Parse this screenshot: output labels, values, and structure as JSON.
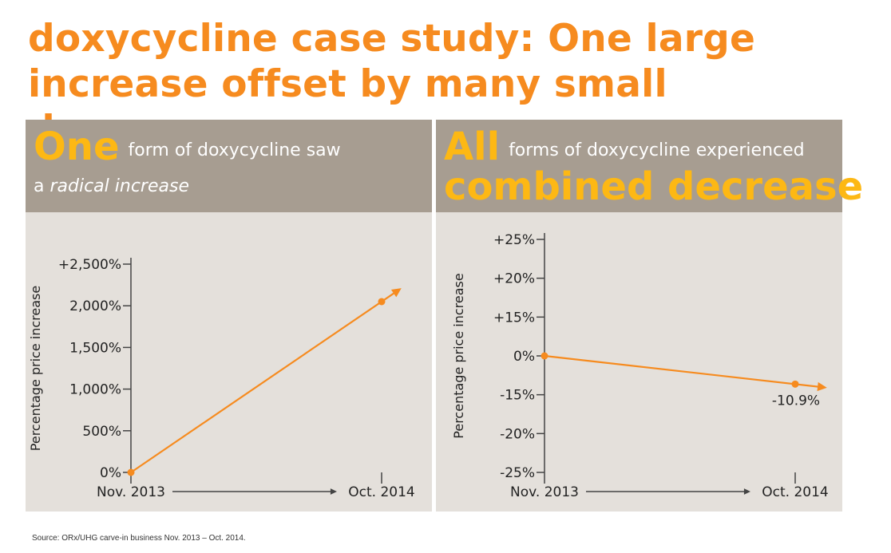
{
  "title": "doxycycline case study: One large increase offset by many small decreases",
  "panels": [
    {
      "header_big": "One",
      "header_rest": "form of doxycycline saw",
      "header_line2_plain": "a ",
      "header_line2_italic": "radical increase"
    },
    {
      "header_big": "All",
      "header_rest": "forms of doxycycline experienced",
      "header_line2_big": "combined decrease"
    }
  ],
  "source": "Source: ORx/UHG carve-in business Nov. 2013 – Oct. 2014.",
  "colors": {
    "accent": "#f68b1f",
    "highlight": "#fdb814",
    "header_bg": "#a79d91",
    "panel_bg": "#e4e0db"
  },
  "chart_data": [
    {
      "type": "line",
      "ylabel": "Percentage price increase",
      "x": [
        "Nov. 2013",
        "Oct. 2014"
      ],
      "yticks": [
        "0%",
        "500%",
        "1,000%",
        "1,500%",
        "2,000%",
        "+2,500%"
      ],
      "ytick_values": [
        0,
        500,
        1000,
        1500,
        2000,
        2500
      ],
      "ylim": [
        0,
        2500
      ],
      "series": [
        {
          "values": [
            0,
            2050
          ]
        }
      ],
      "data_labels": [],
      "arrow_axis": true
    },
    {
      "type": "line",
      "ylabel": "Percentage price increase",
      "x": [
        "Nov. 2013",
        "Oct. 2014"
      ],
      "yticks": [
        "-25%",
        "-20%",
        "-15%",
        "0%",
        "+15%",
        "+20%",
        "+25%"
      ],
      "ytick_values": [
        -25,
        -20,
        -15,
        0,
        15,
        20,
        25
      ],
      "y_scale": "broken (equally spaced ticks)",
      "series": [
        {
          "values": [
            0,
            -10.9
          ]
        }
      ],
      "data_labels": [
        "-10.9%"
      ],
      "arrow_axis": true
    }
  ]
}
